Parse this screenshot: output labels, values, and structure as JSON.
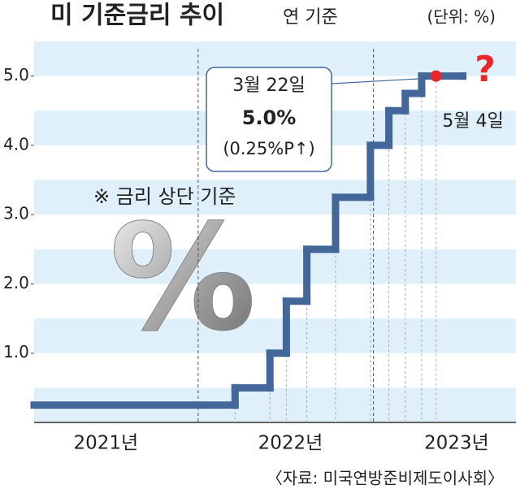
{
  "chart_data": {
    "type": "step",
    "title": "미 기준금리 추이",
    "subtitle": "연 기준",
    "unit": "(단위: %)",
    "note": "※ 금리 상단 기준",
    "source": "〈자료: 미국연방준비제도이사회〉",
    "graphic": "%",
    "callout": {
      "date": "3월 22일",
      "value": "5.0%",
      "change": "(0.25%P↑)"
    },
    "next_meeting": {
      "date": "5월 4일",
      "mark": "?"
    },
    "x": [
      2021.2,
      2022.18,
      2022.35,
      2022.43,
      2022.53,
      2022.67,
      2022.84,
      2022.93,
      2023.01,
      2023.09,
      2023.16,
      2023.29
    ],
    "series": [
      {
        "name": "기준금리 상단",
        "color": "#44679a",
        "values": [
          0.25,
          0.5,
          1.0,
          1.75,
          2.5,
          3.25,
          4.0,
          4.5,
          4.75,
          5.0,
          5.0,
          5.0
        ]
      }
    ],
    "xlim": [
      2021.2,
      2023.55
    ],
    "xticks": [
      {
        "value": 2021.55,
        "label": "2021년"
      },
      {
        "value": 2022.45,
        "label": "2022년"
      },
      {
        "value": 2023.26,
        "label": "2023년"
      }
    ],
    "ylim": [
      0,
      5.5
    ],
    "yticks": [
      {
        "value": 1,
        "label": "1.0"
      },
      {
        "value": 2,
        "label": "2.0"
      },
      {
        "value": 3,
        "label": "3.0"
      },
      {
        "value": 4,
        "label": "4.0"
      },
      {
        "value": 5,
        "label": "5.0"
      }
    ]
  }
}
